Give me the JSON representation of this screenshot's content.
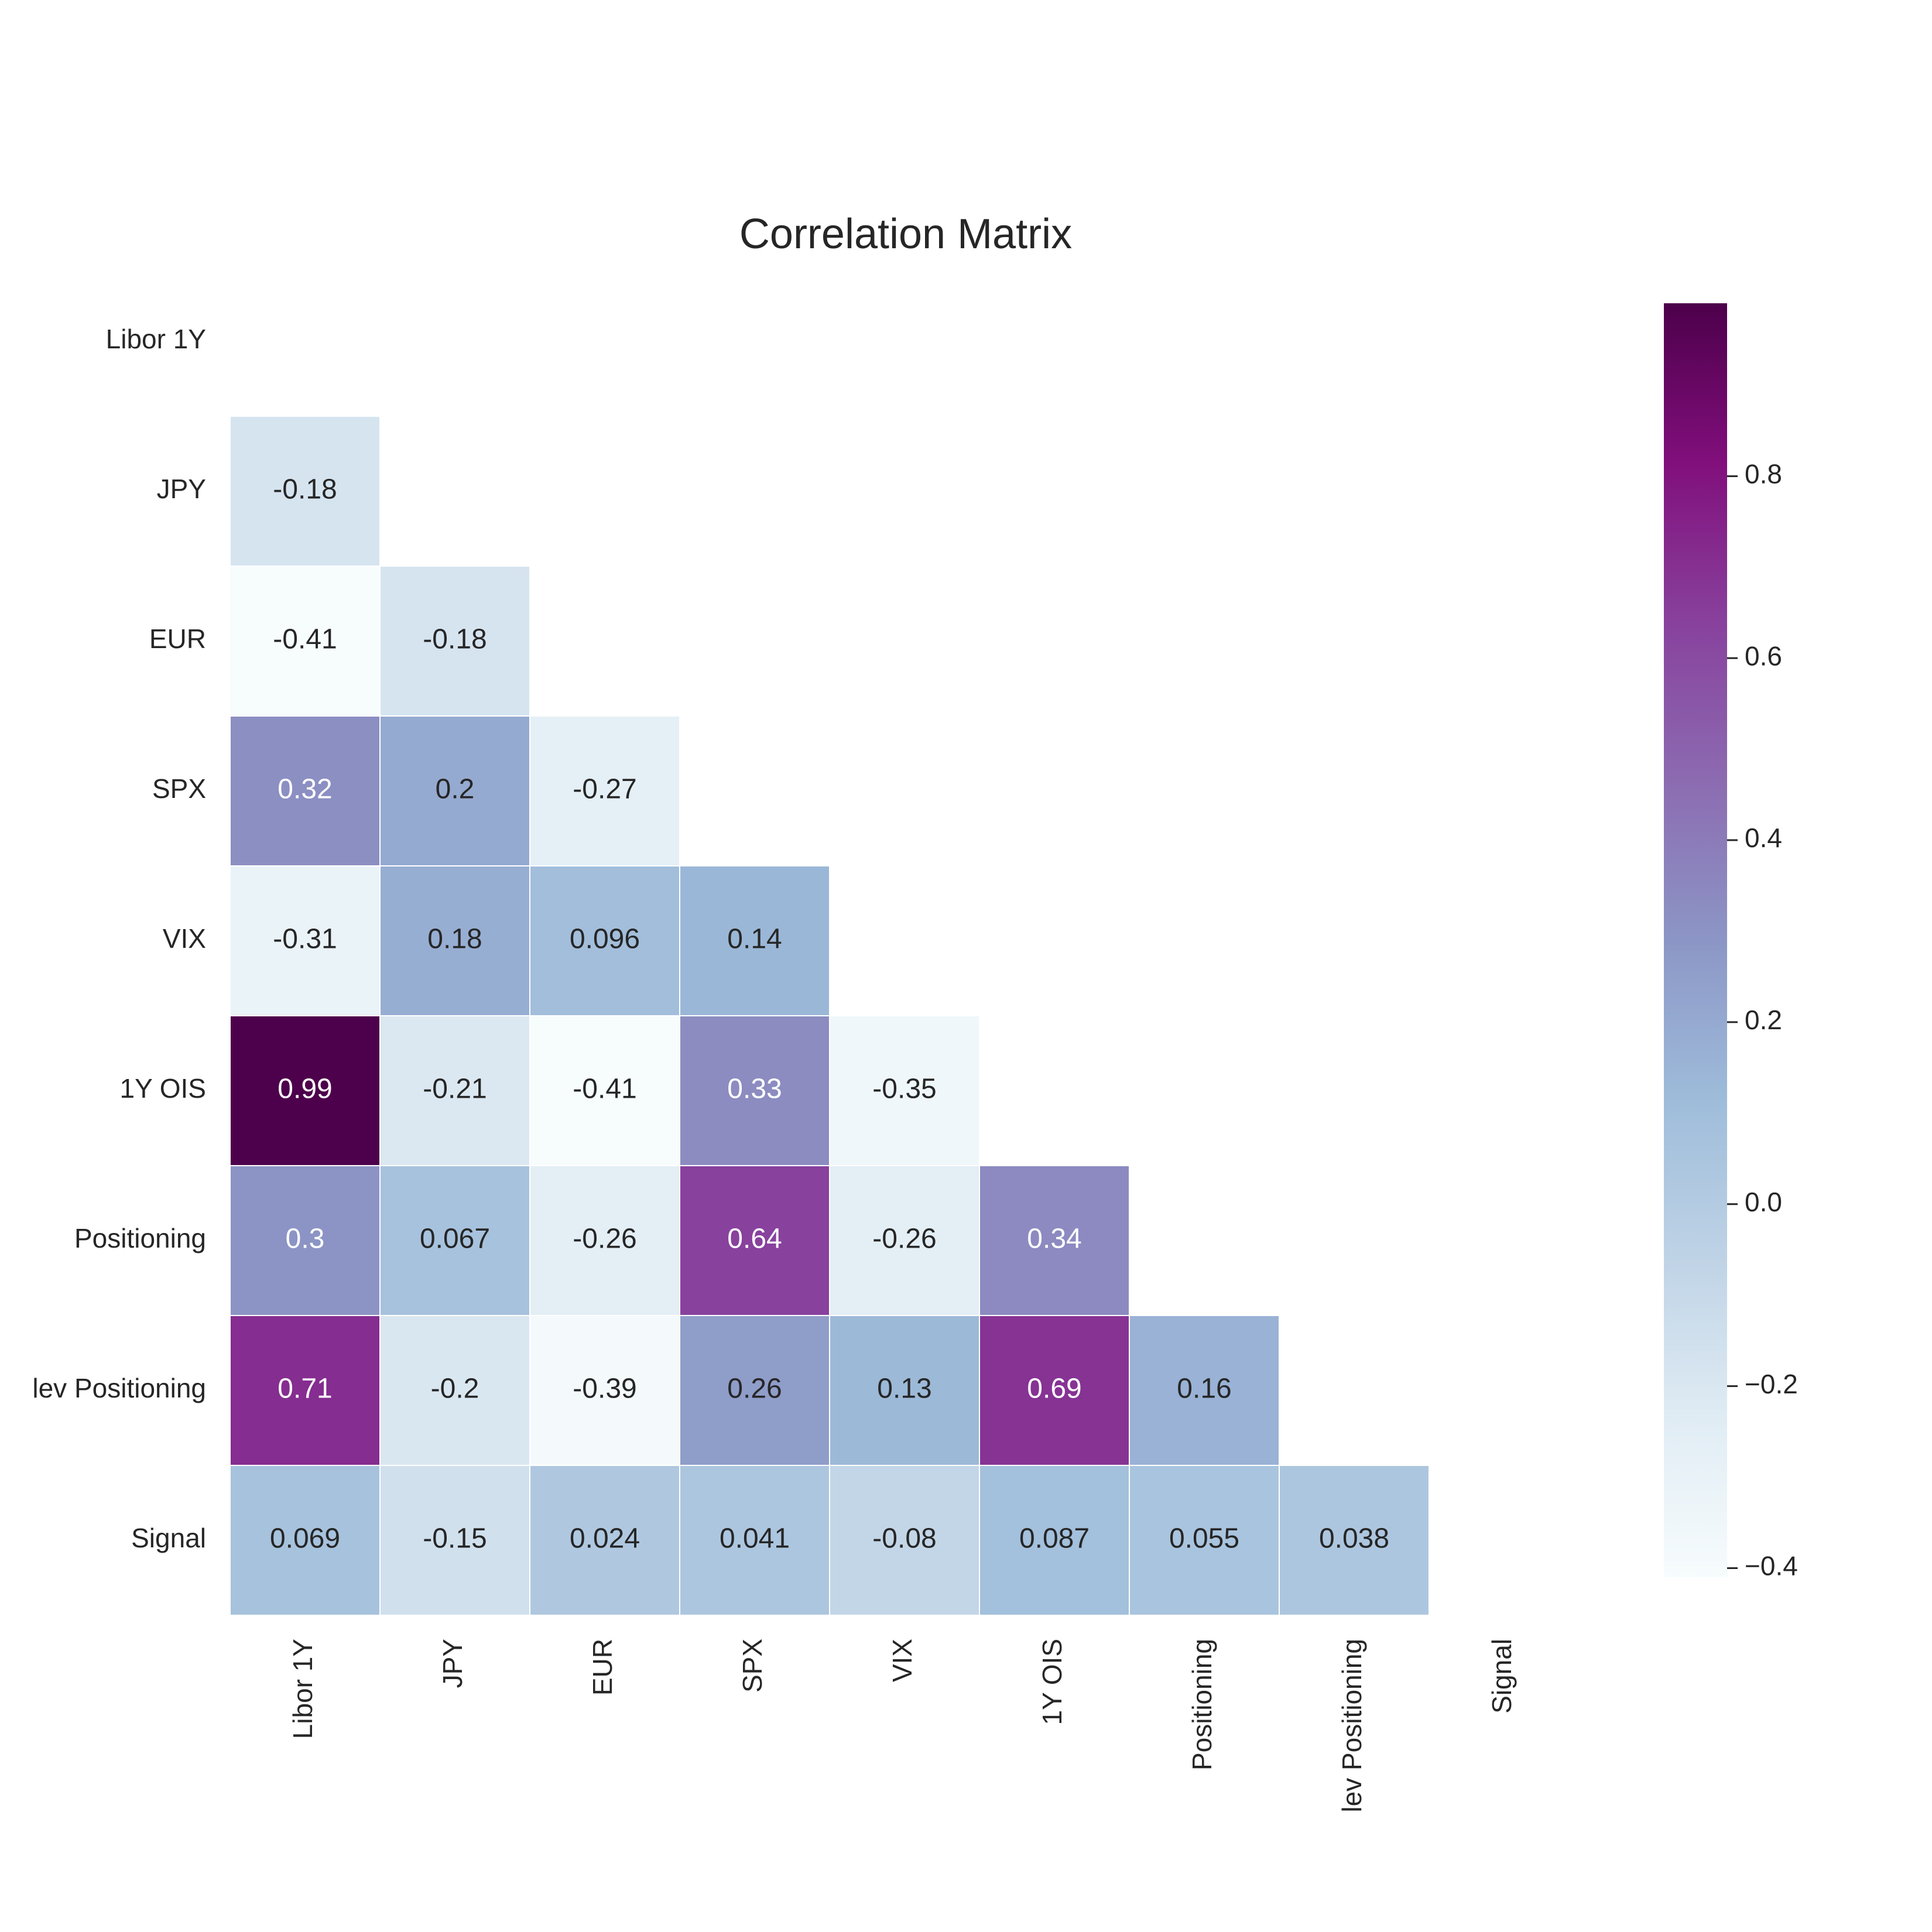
{
  "chart_data": {
    "type": "heatmap",
    "title": "Correlation Matrix",
    "labels": [
      "Libor 1Y",
      "JPY",
      "EUR",
      "SPX",
      "VIX",
      "1Y OIS",
      "Positioning",
      "lev Positioning",
      "Signal"
    ],
    "matrix": [
      [
        null,
        null,
        null,
        null,
        null,
        null,
        null,
        null,
        null
      ],
      [
        -0.18,
        null,
        null,
        null,
        null,
        null,
        null,
        null,
        null
      ],
      [
        -0.41,
        -0.18,
        null,
        null,
        null,
        null,
        null,
        null,
        null
      ],
      [
        0.32,
        0.2,
        -0.27,
        null,
        null,
        null,
        null,
        null,
        null
      ],
      [
        -0.31,
        0.18,
        0.096,
        0.14,
        null,
        null,
        null,
        null,
        null
      ],
      [
        0.99,
        -0.21,
        -0.41,
        0.33,
        -0.35,
        null,
        null,
        null,
        null
      ],
      [
        0.3,
        0.067,
        -0.26,
        0.64,
        -0.26,
        0.34,
        null,
        null,
        null
      ],
      [
        0.71,
        -0.2,
        -0.39,
        0.26,
        0.13,
        0.69,
        0.16,
        null,
        null
      ],
      [
        0.069,
        -0.15,
        0.024,
        0.041,
        -0.08,
        0.087,
        0.055,
        0.038,
        null
      ]
    ],
    "mask": "upper triangle including diagonal",
    "colormap": "BuPu",
    "vmin": -0.41,
    "vmax": 0.99,
    "colorbar_ticks": [
      "0.8",
      "0.6",
      "0.4",
      "0.2",
      "0.0",
      "−0.2",
      "−0.4"
    ],
    "colorbar_tick_values": [
      0.8,
      0.6,
      0.4,
      0.2,
      0.0,
      -0.2,
      -0.4
    ],
    "grid": false,
    "colorbar_position": "right"
  }
}
